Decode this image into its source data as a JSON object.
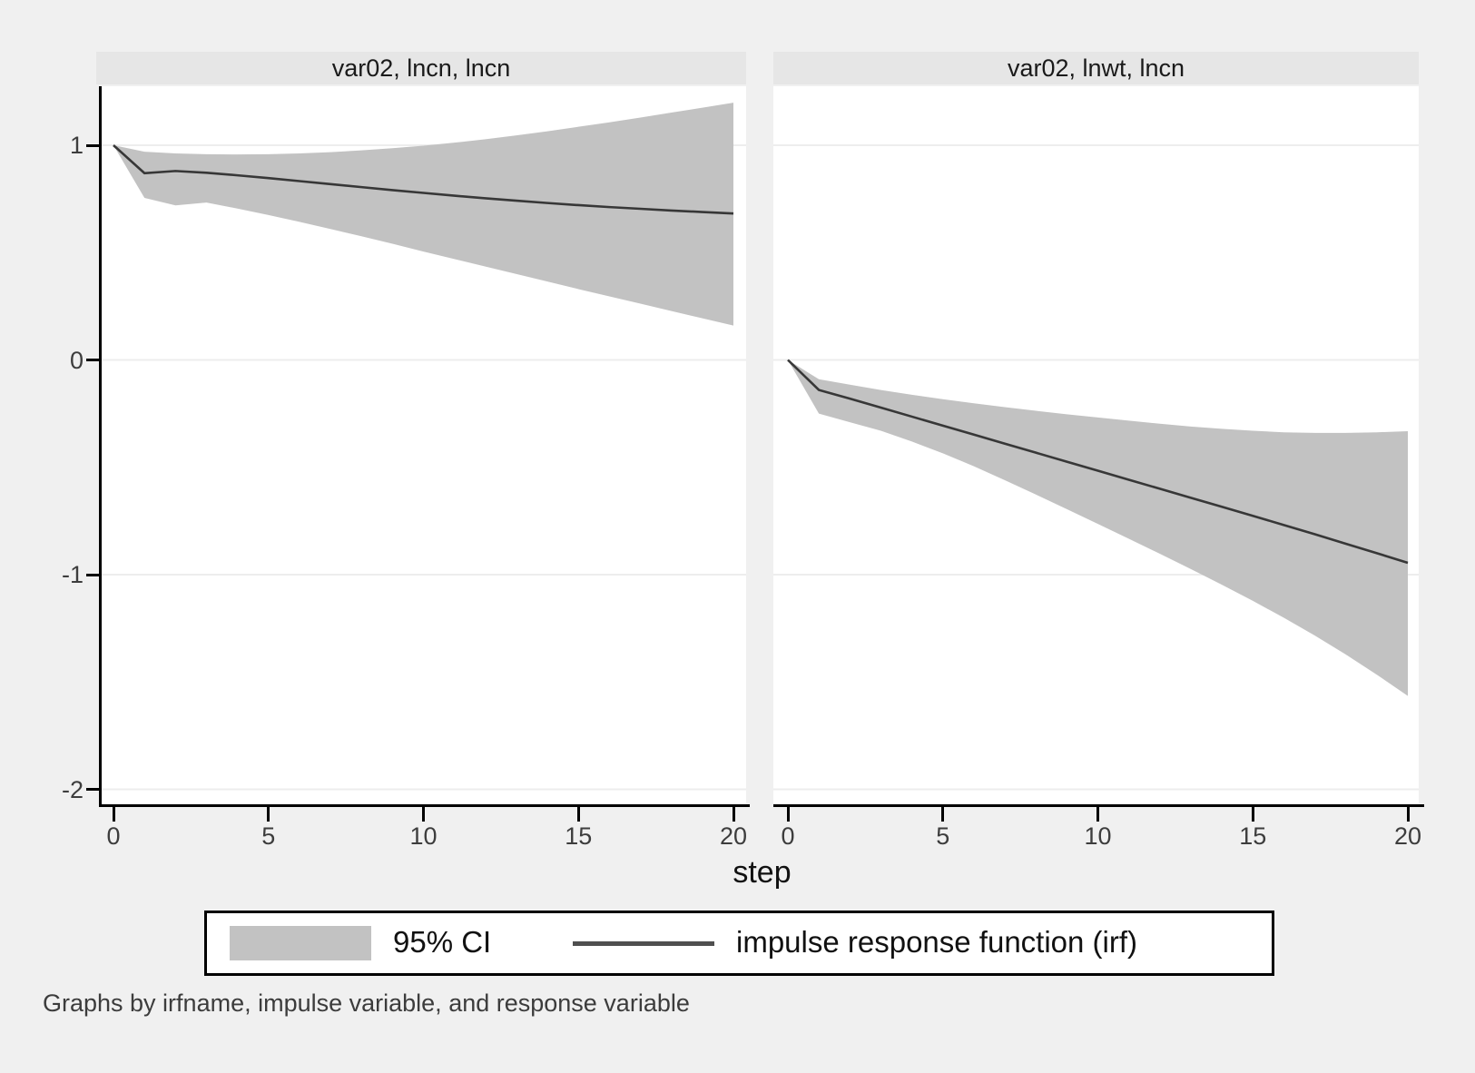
{
  "figure": {
    "xlabel": "step",
    "caption": "Graphs by irfname, impulse variable, and response variable",
    "legend": {
      "ci_label": "95% CI",
      "irf_label": "impulse response function (irf)"
    },
    "colors": {
      "background": "#f0f0f0",
      "plot_background": "#ffffff",
      "title_strip": "#e6e6e6",
      "ci_band": "#c2c2c2",
      "irf_line": "#373737",
      "gridline": "#ededed",
      "axis": "#000000",
      "tick_label": "#3d3d3d"
    }
  },
  "chart_data": [
    {
      "type": "area",
      "title": "var02, lncn, lncn",
      "xlabel": "step",
      "ylabel": "",
      "xlim": [
        0,
        20
      ],
      "ylim": [
        -2.07,
        1.26
      ],
      "xticks": [
        0,
        5,
        10,
        15,
        20
      ],
      "yticks": [
        1,
        0,
        -1,
        -2
      ],
      "grid": true,
      "x": [
        0,
        1,
        2,
        3,
        4,
        5,
        6,
        7,
        8,
        9,
        10,
        11,
        12,
        13,
        14,
        15,
        16,
        17,
        18,
        19,
        20
      ],
      "series": [
        {
          "name": "impulse response function (irf)",
          "values": [
            1.0,
            0.87,
            0.88,
            0.872,
            0.86,
            0.847,
            0.833,
            0.819,
            0.805,
            0.791,
            0.778,
            0.765,
            0.753,
            0.742,
            0.731,
            0.721,
            0.712,
            0.704,
            0.696,
            0.689,
            0.682
          ]
        },
        {
          "name": "95% CI upper",
          "values": [
            1.0,
            0.97,
            0.962,
            0.958,
            0.957,
            0.958,
            0.962,
            0.968,
            0.976,
            0.986,
            0.998,
            1.012,
            1.028,
            1.046,
            1.065,
            1.086,
            1.107,
            1.129,
            1.152,
            1.175,
            1.198
          ]
        },
        {
          "name": "95% CI lower",
          "values": [
            1.0,
            0.755,
            0.72,
            0.733,
            0.705,
            0.675,
            0.643,
            0.61,
            0.576,
            0.541,
            0.505,
            0.47,
            0.435,
            0.4,
            0.365,
            0.33,
            0.296,
            0.262,
            0.228,
            0.194,
            0.16
          ]
        }
      ]
    },
    {
      "type": "area",
      "title": "var02, lnwt, lncn",
      "xlabel": "step",
      "ylabel": "",
      "xlim": [
        0,
        20
      ],
      "ylim": [
        -2.07,
        1.26
      ],
      "xticks": [
        0,
        5,
        10,
        15,
        20
      ],
      "yticks": [
        1,
        0,
        -1,
        -2
      ],
      "grid": true,
      "x": [
        0,
        1,
        2,
        3,
        4,
        5,
        6,
        7,
        8,
        9,
        10,
        11,
        12,
        13,
        14,
        15,
        16,
        17,
        18,
        19,
        20
      ],
      "series": [
        {
          "name": "impulse response function (irf)",
          "values": [
            0.0,
            -0.14,
            -0.18,
            -0.222,
            -0.264,
            -0.306,
            -0.348,
            -0.39,
            -0.432,
            -0.474,
            -0.516,
            -0.558,
            -0.6,
            -0.642,
            -0.684,
            -0.726,
            -0.769,
            -0.812,
            -0.856,
            -0.9,
            -0.945
          ]
        },
        {
          "name": "95% CI upper",
          "values": [
            0.0,
            -0.09,
            -0.115,
            -0.14,
            -0.162,
            -0.183,
            -0.202,
            -0.22,
            -0.237,
            -0.253,
            -0.268,
            -0.283,
            -0.297,
            -0.31,
            -0.321,
            -0.33,
            -0.337,
            -0.34,
            -0.34,
            -0.337,
            -0.332
          ]
        },
        {
          "name": "95% CI lower",
          "values": [
            0.0,
            -0.25,
            -0.29,
            -0.33,
            -0.38,
            -0.435,
            -0.495,
            -0.56,
            -0.627,
            -0.695,
            -0.764,
            -0.833,
            -0.903,
            -0.974,
            -1.047,
            -1.122,
            -1.201,
            -1.284,
            -1.372,
            -1.466,
            -1.565
          ]
        }
      ]
    }
  ]
}
